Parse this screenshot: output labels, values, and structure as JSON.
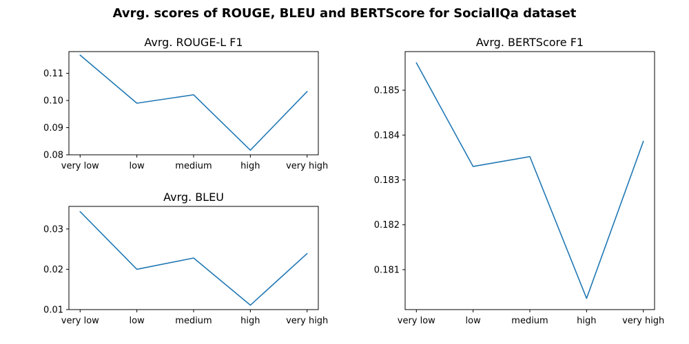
{
  "figure": {
    "suptitle": "Avrg. scores of ROUGE, BLEU and BERTScore for SocialIQa dataset"
  },
  "chart_data": [
    {
      "type": "line",
      "title": "Avrg. ROUGE-L F1",
      "xlabel": "",
      "ylabel": "",
      "categories": [
        "very low",
        "low",
        "medium",
        "high",
        "very high"
      ],
      "values": [
        0.1167,
        0.099,
        0.1021,
        0.0817,
        0.1033
      ],
      "ylim": [
        0.08,
        0.118
      ],
      "yticks": [
        0.08,
        0.09,
        0.1,
        0.11
      ],
      "ytick_labels": [
        "0.08",
        "0.09",
        "0.10",
        "0.11"
      ],
      "grid": false,
      "color": "#1f77b4"
    },
    {
      "type": "line",
      "title": "Avrg. BLEU",
      "xlabel": "",
      "ylabel": "",
      "categories": [
        "very low",
        "low",
        "medium",
        "high",
        "very high"
      ],
      "values": [
        0.0343,
        0.02,
        0.0228,
        0.0111,
        0.0239
      ],
      "ylim": [
        0.01,
        0.0356
      ],
      "yticks": [
        0.01,
        0.02,
        0.03
      ],
      "ytick_labels": [
        "0.01",
        "0.02",
        "0.03"
      ],
      "grid": false,
      "color": "#1f77b4"
    },
    {
      "type": "line",
      "title": "Avrg. BERTScore F1",
      "xlabel": "",
      "ylabel": "",
      "categories": [
        "very low",
        "low",
        "medium",
        "high",
        "very high"
      ],
      "values": [
        0.18561,
        0.1833,
        0.18352,
        0.18036,
        0.18386
      ],
      "ylim": [
        0.18011,
        0.18586
      ],
      "yticks": [
        0.181,
        0.182,
        0.183,
        0.184,
        0.185
      ],
      "ytick_labels": [
        "0.181",
        "0.182",
        "0.183",
        "0.184",
        "0.185"
      ],
      "grid": false,
      "color": "#1f77b4"
    }
  ]
}
